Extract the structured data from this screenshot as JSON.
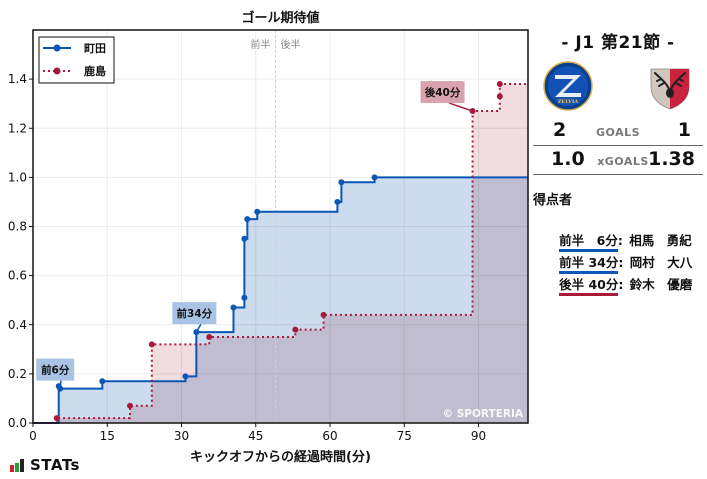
{
  "chart_data": {
    "type": "line",
    "subtype": "step-area",
    "title": "ゴール期待値",
    "xlabel": "キックオフからの経過時間(分)",
    "ylabel": "",
    "xlim": [
      0,
      100
    ],
    "ylim": [
      0,
      1.6
    ],
    "xticks": [
      0,
      15,
      30,
      45,
      60,
      75,
      90
    ],
    "yticks": [
      0.0,
      0.2,
      0.4,
      0.6,
      0.8,
      1.0,
      1.2,
      1.4
    ],
    "ytick_labels": [
      "0.0",
      "0.2",
      "0.4",
      "0.6",
      "0.8",
      "1.0",
      "1.2",
      "1.4"
    ],
    "grid": true,
    "halftime_marker": {
      "x": 49,
      "left_label": "前半",
      "right_label": "後半"
    },
    "legend_position": "upper left",
    "series": [
      {
        "name": "町田",
        "color": "#0a57b5",
        "fill": "#c9d9ee",
        "style": "solid",
        "points": [
          {
            "x": 5.2,
            "y": 0.15
          },
          {
            "x": 5.5,
            "y": 0.14
          },
          {
            "x": 14.0,
            "y": 0.17
          },
          {
            "x": 30.8,
            "y": 0.19
          },
          {
            "x": 33.0,
            "y": 0.37
          },
          {
            "x": 40.5,
            "y": 0.47
          },
          {
            "x": 42.7,
            "y": 0.51
          },
          {
            "x": 42.7,
            "y": 0.75
          },
          {
            "x": 43.3,
            "y": 0.83
          },
          {
            "x": 45.3,
            "y": 0.86
          },
          {
            "x": 61.5,
            "y": 0.9
          },
          {
            "x": 62.3,
            "y": 0.98
          },
          {
            "x": 69.0,
            "y": 1.0
          }
        ],
        "final": 1.0
      },
      {
        "name": "鹿島",
        "color": "#a8193a",
        "fill": "#ecd0d6",
        "style": "dotted",
        "points": [
          {
            "x": 4.8,
            "y": 0.02
          },
          {
            "x": 19.6,
            "y": 0.07
          },
          {
            "x": 24.0,
            "y": 0.32
          },
          {
            "x": 35.6,
            "y": 0.35
          },
          {
            "x": 53.0,
            "y": 0.38
          },
          {
            "x": 58.7,
            "y": 0.44
          },
          {
            "x": 88.8,
            "y": 1.27
          },
          {
            "x": 94.3,
            "y": 1.33
          },
          {
            "x": 94.3,
            "y": 1.38
          }
        ],
        "final": 1.38
      }
    ],
    "annotations": [
      {
        "text": "前6分",
        "team": "町田",
        "x": 5.5,
        "y": 0.14
      },
      {
        "text": "前34分",
        "team": "町田",
        "x": 33.0,
        "y": 0.37
      },
      {
        "text": "後40分",
        "team": "鹿島",
        "x": 88.8,
        "y": 1.27
      }
    ],
    "watermark": "© SPORTERIA"
  },
  "match": {
    "round": "- J1 第21節 -",
    "home": {
      "name": "町田",
      "crest": "zelvia-crest",
      "crest_text": "ZELVIA",
      "goals": "2",
      "xg": "1.0",
      "color": "#0a57b5"
    },
    "away": {
      "name": "鹿島",
      "crest": "antlers-crest",
      "goals": "1",
      "xg": "1.38",
      "color": "#a8193a"
    },
    "goals_label": "GOALS",
    "xgoals_label": "xGOALS"
  },
  "scorers": {
    "title": "得点者",
    "items": [
      {
        "time": "前半　6分",
        "name": "相馬　勇紀",
        "team": "home"
      },
      {
        "time": "前半 34分",
        "name": "岡村　大八",
        "team": "home"
      },
      {
        "time": "後半 40分",
        "name": "鈴木　優磨",
        "team": "away"
      }
    ]
  },
  "brand": {
    "logo_text": "STATs"
  }
}
